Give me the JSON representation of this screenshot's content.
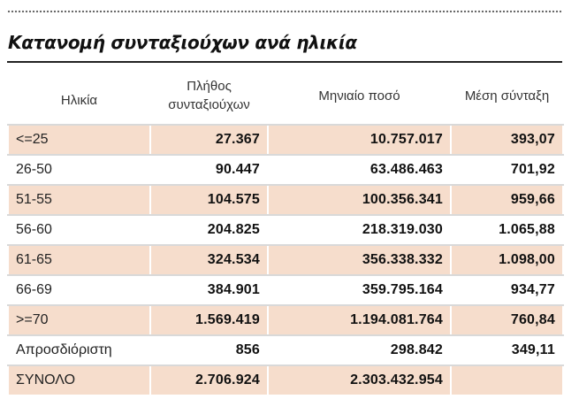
{
  "title": "Κατανομή συνταξιούχων ανά ηλικία",
  "columns": {
    "age": "Ηλικία",
    "count": "Πλήθος συνταξιούχων",
    "amount": "Μηνιαίο ποσό",
    "avg": "Μέση σύνταξη"
  },
  "rows": [
    {
      "age": "<=25",
      "count": "27.367",
      "amount": "10.757.017",
      "avg": "393,07"
    },
    {
      "age": "26-50",
      "count": "90.447",
      "amount": "63.486.463",
      "avg": "701,92"
    },
    {
      "age": "51-55",
      "count": "104.575",
      "amount": "100.356.341",
      "avg": "959,66"
    },
    {
      "age": "56-60",
      "count": "204.825",
      "amount": "218.319.030",
      "avg": "1.065,88"
    },
    {
      "age": "61-65",
      "count": "324.534",
      "amount": "356.338.332",
      "avg": "1.098,00"
    },
    {
      "age": "66-69",
      "count": "384.901",
      "amount": "359.795.164",
      "avg": "934,77"
    },
    {
      "age": ">=70",
      "count": "1.569.419",
      "amount": "1.194.081.764",
      "avg": "760,84"
    },
    {
      "age": "Απροσδιόριστη",
      "count": "856",
      "amount": "298.842",
      "avg": "349,11"
    },
    {
      "age": "ΣΥΝΟΛΟ",
      "count": "2.706.924",
      "amount": "2.303.432.954",
      "avg": ""
    }
  ],
  "colors": {
    "row_shade": "#f6ddcc",
    "rule": "#222222"
  }
}
